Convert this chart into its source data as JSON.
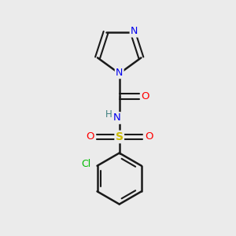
{
  "background_color": "#ebebeb",
  "bond_color": "#1a1a1a",
  "colors": {
    "N": "#0000ee",
    "O": "#ff0000",
    "S": "#ccbb00",
    "Cl": "#00bb00",
    "H": "#408080",
    "C": "#1a1a1a"
  },
  "figsize": [
    3.0,
    3.0
  ],
  "dpi": 100
}
